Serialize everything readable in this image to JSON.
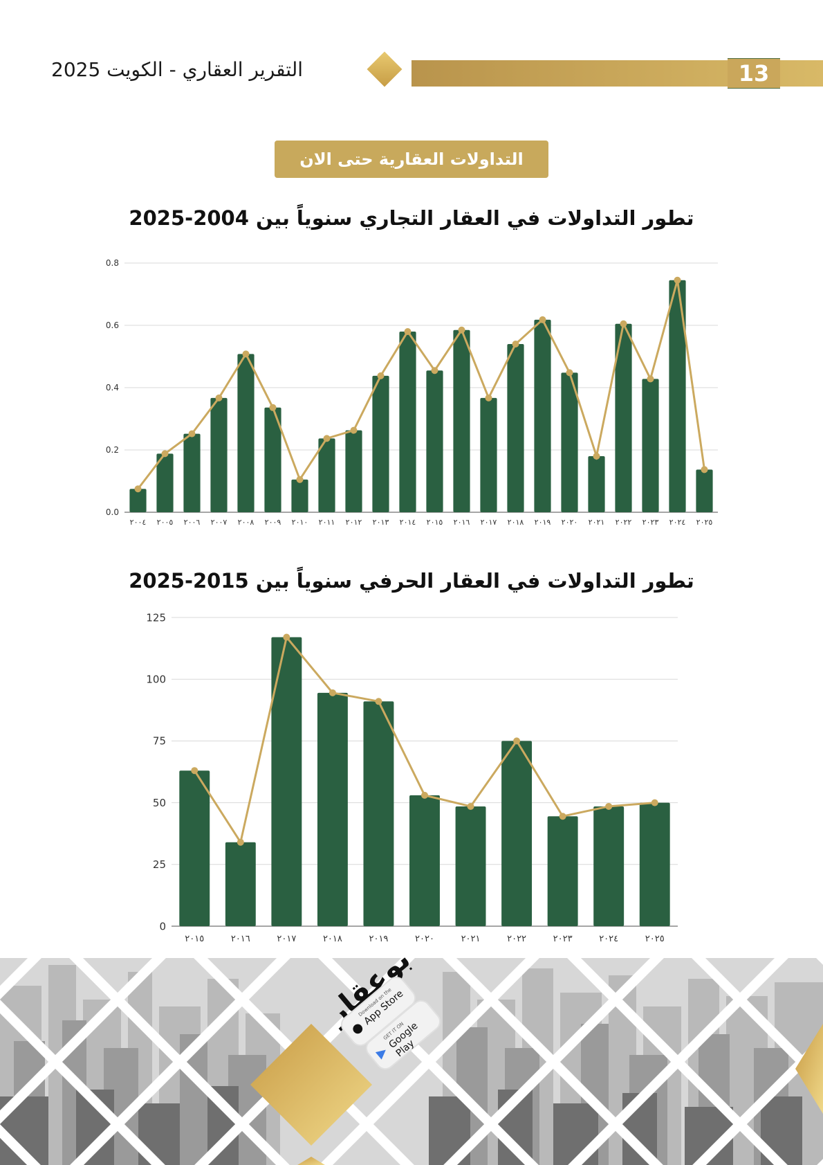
{
  "header": {
    "report_title": "التقرير العقاري - الكويت 2025",
    "page_number": "13"
  },
  "section_badge": "التداولات العقارية حتى الان",
  "colors": {
    "bar": "#2a6041",
    "line": "#cba95f",
    "gold": "#caa75b",
    "grid": "#d8d8d8"
  },
  "chart_data": [
    {
      "type": "bar",
      "title": "تطور التداولات في العقار التجاري سنوياً بين 2004-2025",
      "categories": [
        "٢٠٠٤",
        "٢٠٠٥",
        "٢٠٠٦",
        "٢٠٠٧",
        "٢٠٠٨",
        "٢٠٠٩",
        "٢٠١٠",
        "٢٠١١",
        "٢٠١٢",
        "٢٠١٣",
        "٢٠١٤",
        "٢٠١٥",
        "٢٠١٦",
        "٢٠١٧",
        "٢٠١٨",
        "٢٠١٩",
        "٢٠٢٠",
        "٢٠٢١",
        "٢٠٢٢",
        "٢٠٢٣",
        "٢٠٢٤",
        "٢٠٢٥"
      ],
      "series": [
        {
          "type": "bar",
          "values": [
            0.075,
            0.188,
            0.252,
            0.367,
            0.508,
            0.336,
            0.105,
            0.237,
            0.263,
            0.438,
            0.58,
            0.455,
            0.585,
            0.367,
            0.54,
            0.618,
            0.448,
            0.18,
            0.605,
            0.428,
            0.745,
            0.137
          ]
        },
        {
          "type": "line",
          "values": [
            0.075,
            0.188,
            0.252,
            0.367,
            0.508,
            0.336,
            0.105,
            0.237,
            0.263,
            0.438,
            0.58,
            0.455,
            0.585,
            0.367,
            0.54,
            0.618,
            0.448,
            0.18,
            0.605,
            0.428,
            0.745,
            0.137
          ]
        }
      ],
      "yticks": [
        "0.0",
        "0.2",
        "0.4",
        "0.6",
        "0.8"
      ],
      "ylim": [
        0,
        0.8
      ],
      "grid": true,
      "xlabel": "",
      "ylabel": ""
    },
    {
      "type": "bar",
      "title": "تطور التداولات في العقار الحرفي سنوياً بين 2015-2025",
      "categories": [
        "٢٠١٥",
        "٢٠١٦",
        "٢٠١٧",
        "٢٠١٨",
        "٢٠١٩",
        "٢٠٢٠",
        "٢٠٢١",
        "٢٠٢٢",
        "٢٠٢٣",
        "٢٠٢٤",
        "٢٠٢٥"
      ],
      "series": [
        {
          "type": "bar",
          "values": [
            63,
            34,
            117,
            94.5,
            91,
            53,
            48.5,
            75,
            44.5,
            48.5,
            50
          ]
        },
        {
          "type": "line",
          "values": [
            63,
            34,
            117,
            94.5,
            91,
            53,
            48.5,
            75,
            44.5,
            48.5,
            50
          ]
        }
      ],
      "yticks": [
        "0",
        "25",
        "50",
        "75",
        "100",
        "125"
      ],
      "ylim": [
        0,
        125
      ],
      "grid": true,
      "xlabel": "",
      "ylabel": ""
    }
  ],
  "footer": {
    "logo_text": "بوعقار",
    "app_store": {
      "sub": "Download on the",
      "main": "App Store",
      "icon": "apple-icon"
    },
    "google_play": {
      "sub": "GET IT ON",
      "main": "Google Play",
      "icon": "google-play-icon"
    }
  }
}
